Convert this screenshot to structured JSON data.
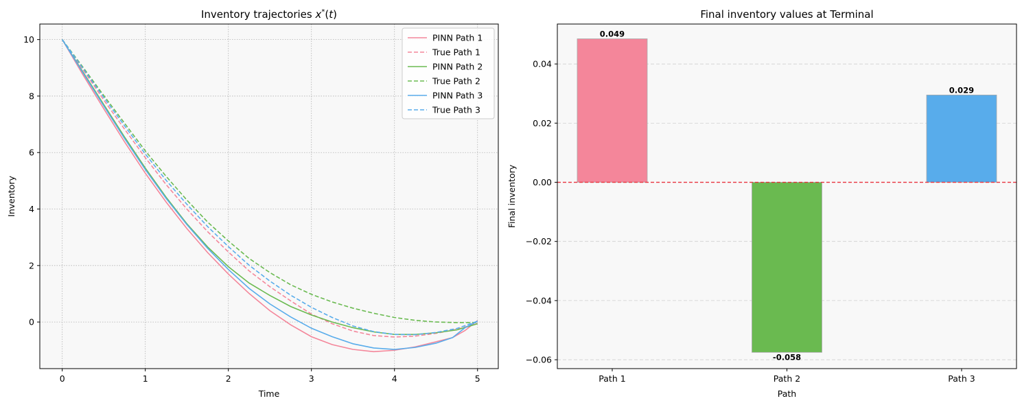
{
  "chart_data": [
    {
      "type": "line",
      "title": "Inventory trajectories x*(t)",
      "xlabel": "Time",
      "ylabel": "Inventory",
      "xlim": [
        -0.27,
        5.25
      ],
      "ylim": [
        -1.65,
        10.55
      ],
      "xticks": [
        0,
        1,
        2,
        3,
        4,
        5
      ],
      "yticks": [
        0,
        2,
        4,
        6,
        8,
        10
      ],
      "grid": true,
      "legend_position": "top-right",
      "series": [
        {
          "name": "PINN Path 1",
          "color": "#f4869a",
          "dash": "solid",
          "x": [
            0,
            0.25,
            0.5,
            0.75,
            1,
            1.25,
            1.5,
            1.75,
            2,
            2.25,
            2.5,
            2.75,
            3,
            3.25,
            3.5,
            3.75,
            4,
            4.25,
            4.5,
            4.7,
            4.85,
            5
          ],
          "y": [
            10,
            8.75,
            7.55,
            6.38,
            5.27,
            4.25,
            3.31,
            2.46,
            1.7,
            1.01,
            0.4,
            -0.1,
            -0.52,
            -0.8,
            -0.97,
            -1.05,
            -1.0,
            -0.88,
            -0.7,
            -0.55,
            -0.3,
            0.05
          ]
        },
        {
          "name": "True Path 1",
          "color": "#f4869a",
          "dash": "dashed",
          "x": [
            0,
            0.25,
            0.5,
            0.75,
            1,
            1.25,
            1.5,
            1.75,
            2,
            2.25,
            2.5,
            2.75,
            3,
            3.25,
            3.5,
            3.75,
            4,
            4.25,
            4.5,
            4.75,
            5
          ],
          "y": [
            10,
            8.94,
            7.86,
            6.83,
            5.82,
            4.87,
            4.0,
            3.2,
            2.48,
            1.81,
            1.25,
            0.75,
            0.28,
            -0.06,
            -0.32,
            -0.48,
            -0.53,
            -0.5,
            -0.4,
            -0.26,
            -0.05
          ]
        },
        {
          "name": "PINN Path 2",
          "color": "#6aba50",
          "dash": "solid",
          "x": [
            0,
            0.25,
            0.5,
            0.75,
            1,
            1.25,
            1.5,
            1.75,
            2,
            2.25,
            2.5,
            2.75,
            3,
            3.25,
            3.5,
            3.75,
            4,
            4.25,
            4.5,
            4.75,
            5
          ],
          "y": [
            10,
            8.85,
            7.7,
            6.55,
            5.45,
            4.42,
            3.48,
            2.66,
            1.96,
            1.38,
            0.94,
            0.55,
            0.25,
            0.0,
            -0.2,
            -0.35,
            -0.44,
            -0.44,
            -0.38,
            -0.28,
            -0.06
          ]
        },
        {
          "name": "True Path 2",
          "color": "#6aba50",
          "dash": "dashed",
          "x": [
            0,
            0.25,
            0.5,
            0.75,
            1,
            1.25,
            1.5,
            1.75,
            2,
            2.25,
            2.5,
            2.75,
            3,
            3.25,
            3.5,
            3.75,
            4,
            4.25,
            4.5,
            4.75,
            5
          ],
          "y": [
            10,
            9.02,
            8.02,
            7.04,
            6.06,
            5.16,
            4.32,
            3.54,
            2.87,
            2.25,
            1.75,
            1.32,
            0.98,
            0.71,
            0.49,
            0.31,
            0.16,
            0.06,
            0.0,
            -0.02,
            -0.02
          ]
        },
        {
          "name": "PINN Path 3",
          "color": "#58aceb",
          "dash": "solid",
          "x": [
            0,
            0.25,
            0.5,
            0.75,
            1,
            1.25,
            1.5,
            1.75,
            2,
            2.25,
            2.5,
            2.75,
            3,
            3.25,
            3.5,
            3.75,
            4,
            4.25,
            4.5,
            4.7,
            4.85,
            5
          ],
          "y": [
            10,
            8.82,
            7.65,
            6.5,
            5.4,
            4.38,
            3.45,
            2.61,
            1.86,
            1.19,
            0.64,
            0.18,
            -0.22,
            -0.52,
            -0.77,
            -0.92,
            -0.97,
            -0.9,
            -0.75,
            -0.55,
            -0.2,
            0.03
          ]
        },
        {
          "name": "True Path 3",
          "color": "#58aceb",
          "dash": "dashed",
          "x": [
            0,
            0.25,
            0.5,
            0.75,
            1,
            1.25,
            1.5,
            1.75,
            2,
            2.25,
            2.5,
            2.75,
            3,
            3.25,
            3.5,
            3.75,
            4,
            4.25,
            4.5,
            4.75,
            5
          ],
          "y": [
            10,
            8.98,
            7.95,
            6.95,
            5.95,
            5.02,
            4.17,
            3.38,
            2.67,
            2.01,
            1.45,
            0.95,
            0.52,
            0.16,
            -0.14,
            -0.34,
            -0.44,
            -0.45,
            -0.37,
            -0.23,
            0.03
          ]
        }
      ]
    },
    {
      "type": "bar",
      "title": "Final inventory values at Terminal",
      "xlabel": "Path",
      "ylabel": "Final inventory",
      "categories": [
        "Path 1",
        "Path 2",
        "Path 3"
      ],
      "values": [
        0.0485,
        -0.0575,
        0.0295
      ],
      "value_labels": [
        "0.049",
        "-0.058",
        "0.029"
      ],
      "colors": [
        "#f4869a",
        "#6aba50",
        "#58aceb"
      ],
      "ylim": [
        -0.063,
        0.0535
      ],
      "yticks": [
        -0.06,
        -0.04,
        -0.02,
        0.0,
        0.02,
        0.04
      ],
      "ytick_labels": [
        "−0.06",
        "−0.04",
        "−0.02",
        "0.00",
        "0.02",
        "0.04"
      ],
      "reference_line": {
        "y": 0,
        "color": "#e8323c",
        "dash": "dashed"
      },
      "grid": "y-dashed"
    }
  ]
}
